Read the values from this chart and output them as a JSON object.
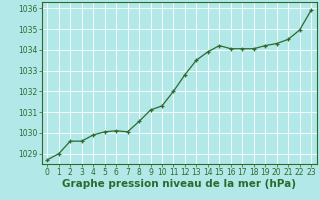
{
  "x": [
    0,
    1,
    2,
    3,
    4,
    5,
    6,
    7,
    8,
    9,
    10,
    11,
    12,
    13,
    14,
    15,
    16,
    17,
    18,
    19,
    20,
    21,
    22,
    23
  ],
  "y": [
    1028.7,
    1029.0,
    1029.6,
    1029.6,
    1029.9,
    1030.05,
    1030.1,
    1030.05,
    1030.55,
    1031.1,
    1031.3,
    1032.0,
    1032.8,
    1033.5,
    1033.9,
    1034.2,
    1034.05,
    1034.05,
    1034.05,
    1034.2,
    1034.3,
    1034.5,
    1034.95,
    1035.9
  ],
  "line_color": "#2d6a2d",
  "marker": "+",
  "bg_color": "#b3e8e8",
  "grid_color": "#ffffff",
  "title": "Graphe pression niveau de la mer (hPa)",
  "title_color": "#2d6a2d",
  "title_fontsize": 7.5,
  "ylim": [
    1028.5,
    1036.3
  ],
  "ytick_values": [
    1029,
    1030,
    1031,
    1032,
    1033,
    1034,
    1035,
    1036
  ],
  "xlim": [
    -0.5,
    23.5
  ],
  "xtick_values": [
    0,
    1,
    2,
    3,
    4,
    5,
    6,
    7,
    8,
    9,
    10,
    11,
    12,
    13,
    14,
    15,
    16,
    17,
    18,
    19,
    20,
    21,
    22,
    23
  ],
  "tick_color": "#2d6a2d",
  "tick_fontsize": 5.5,
  "spine_color": "#2d6a2d",
  "linewidth": 0.9,
  "markersize": 3.0,
  "markeredgewidth": 0.9
}
